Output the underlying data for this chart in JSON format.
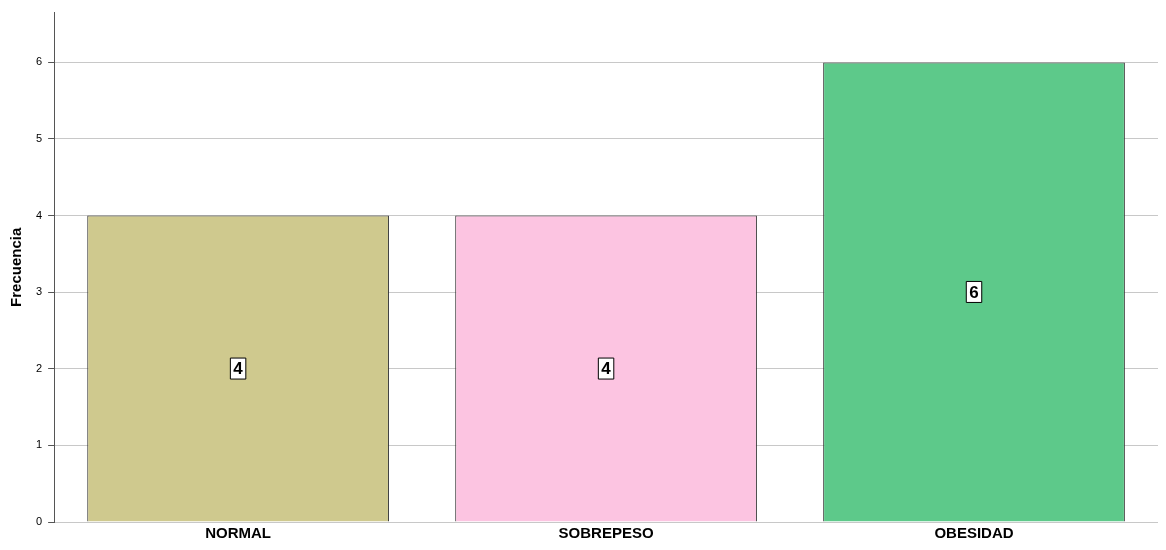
{
  "chart_data": {
    "type": "bar",
    "ylabel": "Frecuencia",
    "categories": [
      "NORMAL",
      "SOBREPESO",
      "OBESIDAD"
    ],
    "values": [
      4,
      4,
      6
    ],
    "colors": [
      "#cfc98e",
      "#fcc4e1",
      "#5dc98a"
    ],
    "ylim": [
      0,
      6.65
    ],
    "yticks": [
      0,
      1,
      2,
      3,
      4,
      5,
      6
    ],
    "grid": "y",
    "data_labels": true,
    "legend": false
  }
}
